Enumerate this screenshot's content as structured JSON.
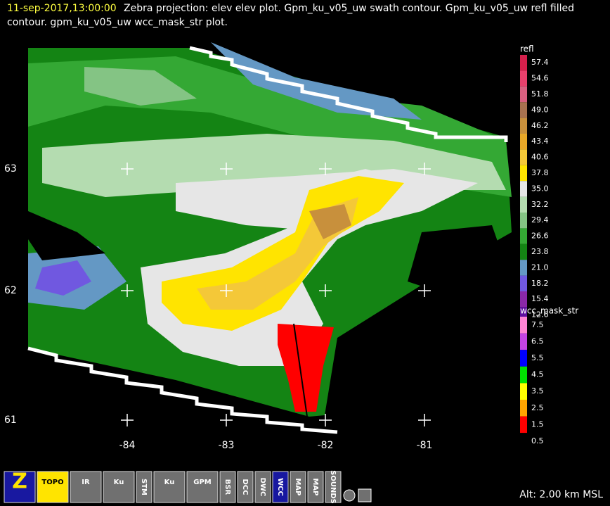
{
  "header": {
    "timestamp": "11-sep-2017,13:00:00",
    "line1": "Zebra projection: elev elev  plot.  Gpm_ku_v05_uw swath contour.  Gpm_ku_v05_uw refl filled",
    "line2": "contour.  gpm_ku_v05_uw wcc_mask_str  plot."
  },
  "map": {
    "lat_labels": [
      "63",
      "62",
      "61"
    ],
    "lon_labels": [
      "-84",
      "-83",
      "-82",
      "-81"
    ]
  },
  "legends": [
    {
      "title": "refl",
      "entries": [
        {
          "label": "57.4",
          "color": "#d4204c"
        },
        {
          "label": "54.6",
          "color": "#e8406c"
        },
        {
          "label": "51.8",
          "color": "#d86080"
        },
        {
          "label": "49.0",
          "color": "#a87250"
        },
        {
          "label": "46.2",
          "color": "#c8903c"
        },
        {
          "label": "43.4",
          "color": "#e8a828"
        },
        {
          "label": "40.6",
          "color": "#f4c838"
        },
        {
          "label": "37.8",
          "color": "#ffe400"
        },
        {
          "label": "35.0",
          "color": "#e6e6e6"
        },
        {
          "label": "32.2",
          "color": "#b4dcb0"
        },
        {
          "label": "29.4",
          "color": "#84c484"
        },
        {
          "label": "26.6",
          "color": "#34a834"
        },
        {
          "label": "23.8",
          "color": "#148414"
        },
        {
          "label": "21.0",
          "color": "#6498c4"
        },
        {
          "label": "18.2",
          "color": "#7058e0"
        },
        {
          "label": "15.4",
          "color": "#8a28a8"
        },
        {
          "label": "12.6",
          "color": "#5e10a0"
        }
      ]
    },
    {
      "title": "wcc_mask_str",
      "entries": [
        {
          "label": "7.5",
          "color": "#ff84d4"
        },
        {
          "label": "6.5",
          "color": "#c444e4"
        },
        {
          "label": "5.5",
          "color": "#0000ff"
        },
        {
          "label": "4.5",
          "color": "#00e000"
        },
        {
          "label": "3.5",
          "color": "#ffff00"
        },
        {
          "label": "2.5",
          "color": "#ffa400"
        },
        {
          "label": "1.5",
          "color": "#ff0000"
        },
        {
          "label": "0.5",
          "color": "#000000"
        }
      ]
    }
  ],
  "toolbar": {
    "buttons": [
      "Z",
      "TOPO",
      "IR",
      "Ku",
      "STM",
      "Ku",
      "GPM",
      "BSR",
      "DCC",
      "DWC",
      "WCC",
      "MAP",
      "MAP",
      "SOUNDS"
    ]
  },
  "status": "Alt: 2.00 km MSL"
}
